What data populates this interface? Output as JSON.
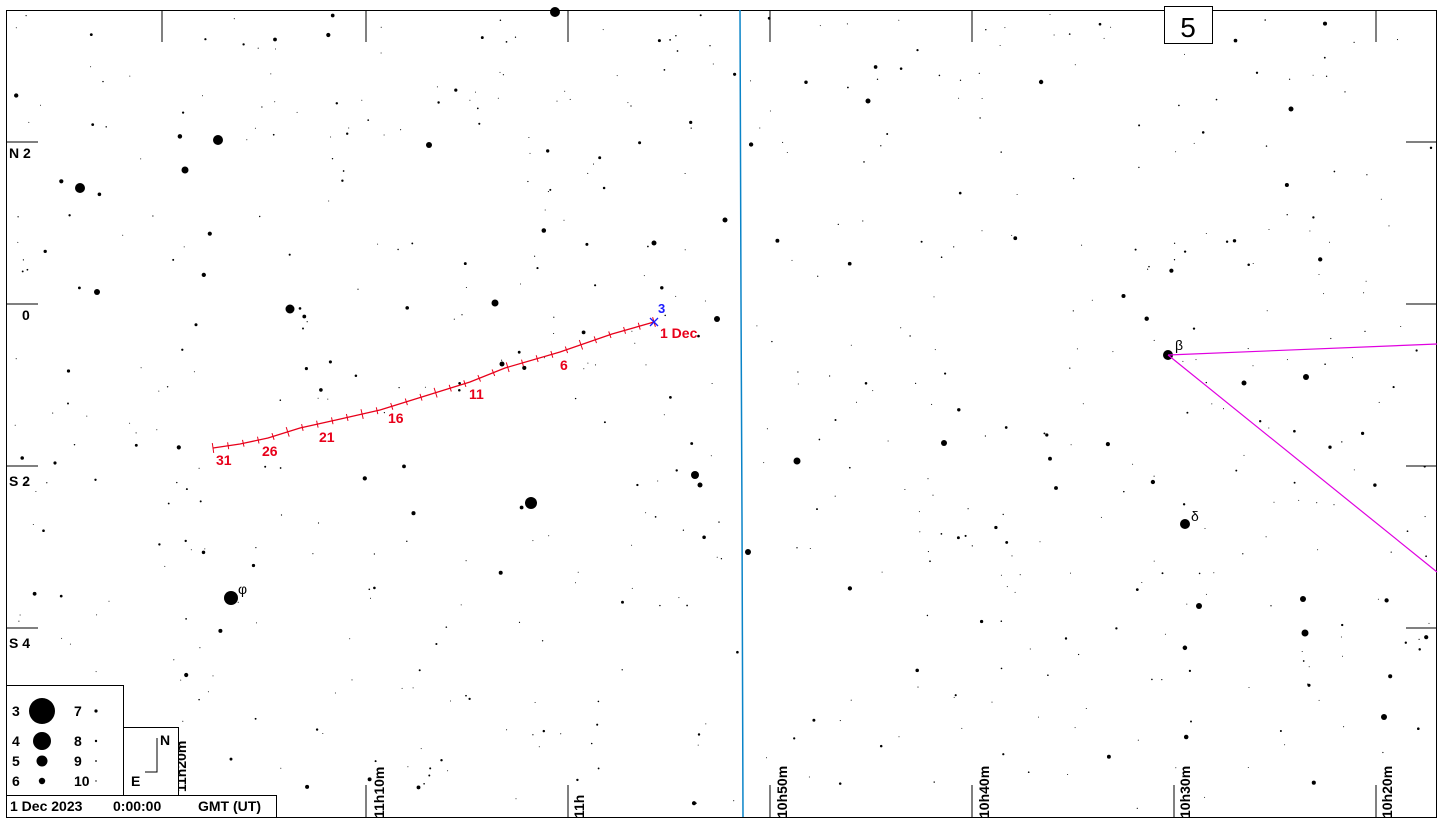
{
  "chart_number": "5",
  "timestamp": {
    "date": "1 Dec 2023",
    "time": "0:00:00",
    "zone": "GMT (UT)"
  },
  "dec_labels": [
    "N 2",
    "0",
    "S 2",
    "S 4"
  ],
  "ra_labels": [
    "11h20m",
    "11h10m",
    "11h",
    "10h50m",
    "10h40m",
    "10h30m",
    "10h20m"
  ],
  "compass": {
    "north": "N",
    "east": "E"
  },
  "magnitude_legend": [
    {
      "mag": "3"
    },
    {
      "mag": "7"
    },
    {
      "mag": "4"
    },
    {
      "mag": "8"
    },
    {
      "mag": "5"
    },
    {
      "mag": "9"
    },
    {
      "mag": "6"
    },
    {
      "mag": "10"
    }
  ],
  "comet": {
    "designation": "3",
    "start_label": "1 Dec",
    "date_marks": [
      "6",
      "11",
      "16",
      "21",
      "26",
      "31"
    ]
  },
  "stars": {
    "beta": "β",
    "delta": "δ",
    "phi": "φ"
  },
  "colors": {
    "track": "#e8001a",
    "designation": "#1a1aff",
    "meridian": "#0a84c8",
    "constellation": "#e000e0"
  }
}
